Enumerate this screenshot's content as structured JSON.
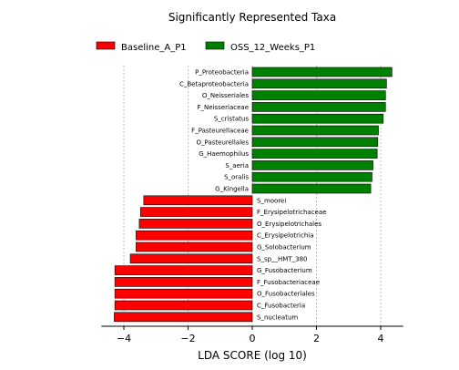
{
  "chart_data": {
    "type": "bar",
    "orientation": "horizontal",
    "title": "Significantly Represented Taxa",
    "xlabel": "LDA SCORE (log 10)",
    "xlim": [
      -4.7,
      4.7
    ],
    "xticks": [
      -4,
      -2,
      0,
      2,
      4
    ],
    "xtick_labels": [
      "−4",
      "−2",
      "0",
      "2",
      "4"
    ],
    "grid": "vertical-dashed",
    "legend_placement": "top",
    "legend": [
      {
        "name": "Baseline_A_P1",
        "color": "#ff0000"
      },
      {
        "name": "OSS_12_Weeks_P1",
        "color": "#008000"
      }
    ],
    "rows": [
      {
        "label": "P_Proteobacteria",
        "value": 4.35,
        "group": "OSS_12_Weeks_P1"
      },
      {
        "label": "C_Betaproteobacteria",
        "value": 4.18,
        "group": "OSS_12_Weeks_P1"
      },
      {
        "label": "O_Neisseriales",
        "value": 4.15,
        "group": "OSS_12_Weeks_P1"
      },
      {
        "label": "F_Neisseriaceae",
        "value": 4.15,
        "group": "OSS_12_Weeks_P1"
      },
      {
        "label": "S_cristatus",
        "value": 4.08,
        "group": "OSS_12_Weeks_P1"
      },
      {
        "label": "F_Pasteurellaceae",
        "value": 3.93,
        "group": "OSS_12_Weeks_P1"
      },
      {
        "label": "O_Pasteurellales",
        "value": 3.91,
        "group": "OSS_12_Weeks_P1"
      },
      {
        "label": "G_Haemophilus",
        "value": 3.89,
        "group": "OSS_12_Weeks_P1"
      },
      {
        "label": "S_aeria",
        "value": 3.76,
        "group": "OSS_12_Weeks_P1"
      },
      {
        "label": "S_oralis",
        "value": 3.73,
        "group": "OSS_12_Weeks_P1"
      },
      {
        "label": "G_Kingella",
        "value": 3.69,
        "group": "OSS_12_Weeks_P1"
      },
      {
        "label": "S_moorei",
        "value": -3.38,
        "group": "Baseline_A_P1"
      },
      {
        "label": "F_Erysipelotrichaceae",
        "value": -3.48,
        "group": "Baseline_A_P1"
      },
      {
        "label": "O_Erysipelotrichales",
        "value": -3.52,
        "group": "Baseline_A_P1"
      },
      {
        "label": "C_Erysipelotrichia",
        "value": -3.62,
        "group": "Baseline_A_P1"
      },
      {
        "label": "G_Solobacterium",
        "value": -3.62,
        "group": "Baseline_A_P1"
      },
      {
        "label": "S_sp__HMT_380",
        "value": -3.8,
        "group": "Baseline_A_P1"
      },
      {
        "label": "G_Fusobacterium",
        "value": -4.28,
        "group": "Baseline_A_P1"
      },
      {
        "label": "F_Fusobacteriaceae",
        "value": -4.28,
        "group": "Baseline_A_P1"
      },
      {
        "label": "O_Fusobacteriales",
        "value": -4.28,
        "group": "Baseline_A_P1"
      },
      {
        "label": "C_Fusobacteria",
        "value": -4.28,
        "group": "Baseline_A_P1"
      },
      {
        "label": "S_nucleatum",
        "value": -4.3,
        "group": "Baseline_A_P1"
      }
    ]
  }
}
